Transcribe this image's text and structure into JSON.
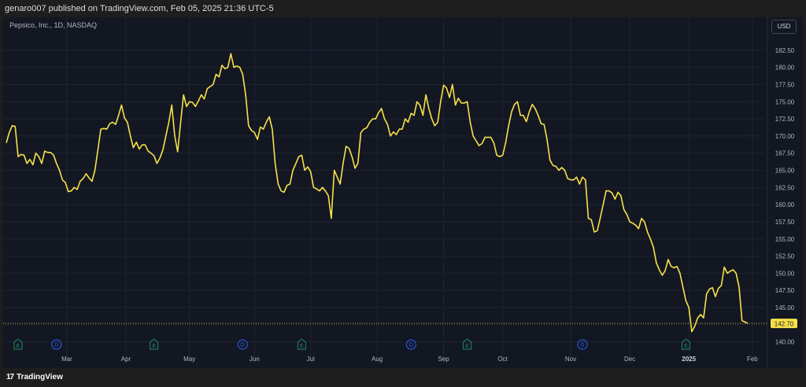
{
  "header": {
    "publish_text": "genaro007 published on TradingView.com, Feb 05, 2025 21:36 UTC-5"
  },
  "chart_title": "Pepsico, Inc., 1D, NASDAQ",
  "currency_button": "USD",
  "footer": {
    "brand": "TradingView",
    "logo_mark": "17"
  },
  "colors": {
    "background": "#131722",
    "line": "#f7e14a",
    "grid": "#1f2433",
    "axis_text": "#b2b5be",
    "price_tag_bg": "#f7e14a",
    "earnings": "#1e8c61",
    "dividend": "#2962ff"
  },
  "chart_data": {
    "type": "line",
    "title": "Pepsico, Inc., 1D, NASDAQ",
    "ylabel": "",
    "xlabel": "",
    "ylim": [
      138.7,
      185
    ],
    "y_ticks": [
      140.0,
      142.5,
      145.0,
      147.5,
      150.0,
      152.5,
      155.0,
      157.5,
      160.0,
      162.5,
      165.0,
      167.5,
      170.0,
      172.5,
      175.0,
      177.5,
      180.0,
      182.5
    ],
    "x_ticks": [
      {
        "label": "Mar",
        "x": 20.5
      },
      {
        "label": "Apr",
        "x": 40.5
      },
      {
        "label": "May",
        "x": 62
      },
      {
        "label": "Jun",
        "x": 84
      },
      {
        "label": "Jul",
        "x": 103
      },
      {
        "label": "Aug",
        "x": 125.5
      },
      {
        "label": "Sep",
        "x": 148
      },
      {
        "label": "Oct",
        "x": 168
      },
      {
        "label": "Nov",
        "x": 191
      },
      {
        "label": "Dec",
        "x": 211
      },
      {
        "label": "2025",
        "x": 231,
        "bold": true
      },
      {
        "label": "Feb",
        "x": 252.5
      }
    ],
    "x_range": [
      0,
      256
    ],
    "last_price": 142.7,
    "last_price_label": "142.70",
    "grid": true,
    "series": [
      {
        "points": [
          [
            0,
            169.0
          ],
          [
            1,
            170.5
          ],
          [
            2,
            171.5
          ],
          [
            3,
            171.4
          ],
          [
            4,
            167.0
          ],
          [
            5,
            167.3
          ],
          [
            6,
            167.2
          ],
          [
            7,
            166.0
          ],
          [
            8,
            166.6
          ],
          [
            9,
            165.8
          ],
          [
            10,
            167.5
          ],
          [
            11,
            167.0
          ],
          [
            12,
            166.0
          ],
          [
            13,
            167.8
          ],
          [
            14,
            167.6
          ],
          [
            15,
            167.6
          ],
          [
            16,
            167.2
          ],
          [
            17,
            166.0
          ],
          [
            18,
            165.0
          ],
          [
            19,
            163.6
          ],
          [
            20,
            163.2
          ],
          [
            21,
            161.9
          ],
          [
            22,
            162.0
          ],
          [
            23,
            162.5
          ],
          [
            24,
            162.2
          ],
          [
            25,
            163.4
          ],
          [
            26,
            163.8
          ],
          [
            27,
            164.5
          ],
          [
            28,
            163.9
          ],
          [
            29,
            163.4
          ],
          [
            30,
            165.0
          ],
          [
            31,
            168.0
          ],
          [
            32,
            171.0
          ],
          [
            33,
            171.1
          ],
          [
            34,
            171.0
          ],
          [
            35,
            171.8
          ],
          [
            36,
            172.0
          ],
          [
            37,
            171.7
          ],
          [
            38,
            173.0
          ],
          [
            39,
            174.5
          ],
          [
            40,
            172.6
          ],
          [
            41,
            172.0
          ],
          [
            42,
            170.0
          ],
          [
            43,
            168.3
          ],
          [
            44,
            169.1
          ],
          [
            45,
            168.1
          ],
          [
            46,
            168.7
          ],
          [
            47,
            168.7
          ],
          [
            48,
            167.8
          ],
          [
            49,
            167.5
          ],
          [
            50,
            167.1
          ],
          [
            51,
            166.0
          ],
          [
            52,
            166.8
          ],
          [
            53,
            168.0
          ],
          [
            54,
            170.0
          ],
          [
            55,
            172.0
          ],
          [
            56,
            174.5
          ],
          [
            57,
            170.0
          ],
          [
            58,
            167.7
          ],
          [
            59,
            172.0
          ],
          [
            60,
            176.0
          ],
          [
            61,
            174.3
          ],
          [
            62,
            175.0
          ],
          [
            63,
            174.9
          ],
          [
            64,
            174.3
          ],
          [
            65,
            175.1
          ],
          [
            66,
            176.0
          ],
          [
            67,
            175.4
          ],
          [
            68,
            176.9
          ],
          [
            69,
            177.2
          ],
          [
            70,
            177.5
          ],
          [
            71,
            179.0
          ],
          [
            72,
            178.6
          ],
          [
            73,
            180.3
          ],
          [
            74,
            179.8
          ],
          [
            75,
            180.0
          ],
          [
            76,
            182.0
          ],
          [
            77,
            180.0
          ],
          [
            78,
            180.2
          ],
          [
            79,
            180.0
          ],
          [
            80,
            179.0
          ],
          [
            81,
            176.0
          ],
          [
            82,
            171.5
          ],
          [
            83,
            170.8
          ],
          [
            84,
            170.5
          ],
          [
            85,
            169.5
          ],
          [
            86,
            171.3
          ],
          [
            87,
            171.0
          ],
          [
            88,
            172.0
          ],
          [
            89,
            172.8
          ],
          [
            90,
            171.0
          ],
          [
            91,
            166.0
          ],
          [
            92,
            163.0
          ],
          [
            93,
            162.0
          ],
          [
            94,
            161.8
          ],
          [
            95,
            162.8
          ],
          [
            96,
            163.0
          ],
          [
            97,
            165.0
          ],
          [
            98,
            166.0
          ],
          [
            99,
            167.0
          ],
          [
            100,
            167.2
          ],
          [
            101,
            165.0
          ],
          [
            102,
            165.5
          ],
          [
            103,
            164.8
          ],
          [
            104,
            162.5
          ],
          [
            105,
            162.3
          ],
          [
            106,
            162.0
          ],
          [
            107,
            162.5
          ],
          [
            108,
            162.0
          ],
          [
            109,
            161.3
          ],
          [
            110,
            158.0
          ],
          [
            111,
            165.0
          ],
          [
            112,
            164.0
          ],
          [
            113,
            163.0
          ],
          [
            114,
            166.0
          ],
          [
            115,
            168.5
          ],
          [
            116,
            168.2
          ],
          [
            117,
            167.0
          ],
          [
            118,
            165.3
          ],
          [
            119,
            166.0
          ],
          [
            120,
            170.5
          ],
          [
            121,
            171.0
          ],
          [
            122,
            171.2
          ],
          [
            123,
            172.0
          ],
          [
            124,
            172.5
          ],
          [
            125,
            172.5
          ],
          [
            126,
            173.4
          ],
          [
            127,
            174.0
          ],
          [
            128,
            172.5
          ],
          [
            129,
            171.7
          ],
          [
            130,
            170.0
          ],
          [
            131,
            170.6
          ],
          [
            132,
            170.2
          ],
          [
            133,
            171.0
          ],
          [
            134,
            171.0
          ],
          [
            135,
            172.5
          ],
          [
            136,
            172.0
          ],
          [
            137,
            173.3
          ],
          [
            138,
            173.0
          ],
          [
            139,
            175.0
          ],
          [
            140,
            174.5
          ],
          [
            141,
            173.0
          ],
          [
            142,
            176.0
          ],
          [
            143,
            174.0
          ],
          [
            144,
            172.5
          ],
          [
            145,
            171.5
          ],
          [
            146,
            172.0
          ],
          [
            147,
            175.0
          ],
          [
            148,
            177.4
          ],
          [
            149,
            177.0
          ],
          [
            150,
            175.6
          ],
          [
            151,
            177.5
          ],
          [
            152,
            174.5
          ],
          [
            153,
            175.5
          ],
          [
            154,
            174.8
          ],
          [
            155,
            174.8
          ],
          [
            156,
            175.0
          ],
          [
            157,
            172.0
          ],
          [
            158,
            170.0
          ],
          [
            159,
            169.3
          ],
          [
            160,
            168.6
          ],
          [
            161,
            168.9
          ],
          [
            162,
            169.8
          ],
          [
            163,
            169.8
          ],
          [
            164,
            169.8
          ],
          [
            165,
            169.0
          ],
          [
            166,
            167.2
          ],
          [
            167,
            167.0
          ],
          [
            168,
            167.2
          ],
          [
            169,
            169.0
          ],
          [
            170,
            171.5
          ],
          [
            171,
            173.5
          ],
          [
            172,
            174.6
          ],
          [
            173,
            175.0
          ],
          [
            174,
            173.0
          ],
          [
            175,
            173.0
          ],
          [
            176,
            172.1
          ],
          [
            177,
            173.5
          ],
          [
            178,
            174.6
          ],
          [
            179,
            174.0
          ],
          [
            180,
            173.0
          ],
          [
            181,
            171.8
          ],
          [
            182,
            171.7
          ],
          [
            183,
            169.5
          ],
          [
            184,
            166.5
          ],
          [
            185,
            165.7
          ],
          [
            186,
            165.6
          ],
          [
            187,
            165.0
          ],
          [
            188,
            165.4
          ],
          [
            189,
            165.0
          ],
          [
            190,
            163.8
          ],
          [
            191,
            163.6
          ],
          [
            192,
            163.6
          ],
          [
            193,
            164.0
          ],
          [
            194,
            163.0
          ],
          [
            195,
            164.0
          ],
          [
            196,
            163.6
          ],
          [
            197,
            158.0
          ],
          [
            198,
            157.8
          ],
          [
            199,
            156.0
          ],
          [
            200,
            156.2
          ],
          [
            201,
            158.0
          ],
          [
            202,
            160.0
          ],
          [
            203,
            162.0
          ],
          [
            204,
            162.0
          ],
          [
            205,
            161.7
          ],
          [
            206,
            160.8
          ],
          [
            207,
            161.8
          ],
          [
            208,
            161.3
          ],
          [
            209,
            159.3
          ],
          [
            210,
            158.6
          ],
          [
            211,
            157.5
          ],
          [
            212,
            157.3
          ],
          [
            213,
            157.0
          ],
          [
            214,
            156.5
          ],
          [
            215,
            158.0
          ],
          [
            216,
            157.5
          ],
          [
            217,
            156.0
          ],
          [
            218,
            155.0
          ],
          [
            219,
            153.8
          ],
          [
            220,
            151.5
          ],
          [
            221,
            150.5
          ],
          [
            222,
            149.7
          ],
          [
            223,
            150.4
          ],
          [
            224,
            152.0
          ],
          [
            225,
            151.0
          ],
          [
            226,
            150.8
          ],
          [
            227,
            151.0
          ],
          [
            228,
            150.0
          ],
          [
            229,
            148.0
          ],
          [
            230,
            146.0
          ],
          [
            231,
            145.0
          ],
          [
            232,
            141.5
          ],
          [
            233,
            142.3
          ],
          [
            234,
            143.5
          ],
          [
            235,
            144.0
          ],
          [
            236,
            143.5
          ],
          [
            237,
            147.0
          ],
          [
            238,
            147.7
          ],
          [
            239,
            147.9
          ],
          [
            240,
            146.6
          ],
          [
            241,
            147.8
          ],
          [
            242,
            148.2
          ],
          [
            243,
            150.9
          ],
          [
            244,
            150.0
          ],
          [
            245,
            150.3
          ],
          [
            246,
            150.5
          ],
          [
            247,
            150.0
          ],
          [
            248,
            148.0
          ],
          [
            249,
            143.1
          ],
          [
            250,
            142.9
          ],
          [
            251,
            142.7
          ]
        ]
      }
    ],
    "events": [
      {
        "type": "E",
        "x": 4
      },
      {
        "type": "D",
        "x": 17
      },
      {
        "type": "E",
        "x": 50
      },
      {
        "type": "D",
        "x": 80
      },
      {
        "type": "E",
        "x": 100
      },
      {
        "type": "D",
        "x": 137
      },
      {
        "type": "E",
        "x": 156
      },
      {
        "type": "D",
        "x": 195
      },
      {
        "type": "E",
        "x": 230
      }
    ]
  }
}
